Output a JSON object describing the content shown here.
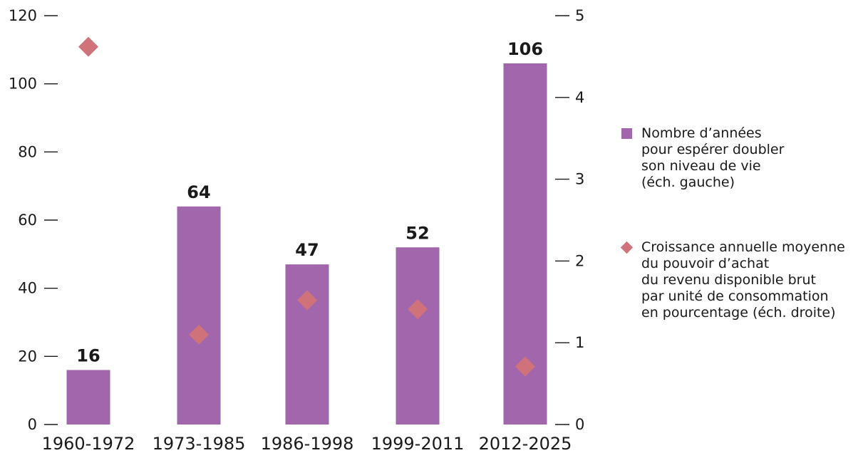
{
  "chart_data": {
    "type": "bar",
    "categories": [
      "1960-1972",
      "1973-1985",
      "1986-1998",
      "1999-2011",
      "2012-2025"
    ],
    "series": [
      {
        "name": "Nombre d’années\npour espérer doubler\nson niveau de vie\n(éch. gauche)",
        "kind": "bar",
        "axis": "left",
        "values": [
          16,
          64,
          47,
          52,
          106
        ],
        "labels": [
          "16",
          "64",
          "47",
          "52",
          "106"
        ],
        "color": "#a166ac"
      },
      {
        "name": "Croissance annuelle moyenne\ndu pouvoir d’achat\ndu revenu disponible brut\npar unité de consommation\nen pourcentage (éch. droite)",
        "kind": "scatter",
        "marker": "diamond",
        "axis": "right",
        "values": [
          4.62,
          1.1,
          1.52,
          1.41,
          0.71
        ],
        "color": "#d0727a"
      }
    ],
    "y_left": {
      "ylim": [
        0,
        120
      ],
      "ticks": [
        0,
        20,
        40,
        60,
        80,
        100,
        120
      ],
      "tick_labels": [
        "0",
        "20",
        "40",
        "60",
        "80",
        "100",
        "120"
      ]
    },
    "y_right": {
      "ylim": [
        0,
        5
      ],
      "ticks": [
        0,
        1,
        2,
        3,
        4,
        5
      ],
      "tick_labels": [
        "0",
        "1",
        "2",
        "3",
        "4",
        "5"
      ]
    },
    "title": "",
    "xlabel": "",
    "ylabel": "",
    "grid": false,
    "legend_position": "right"
  }
}
